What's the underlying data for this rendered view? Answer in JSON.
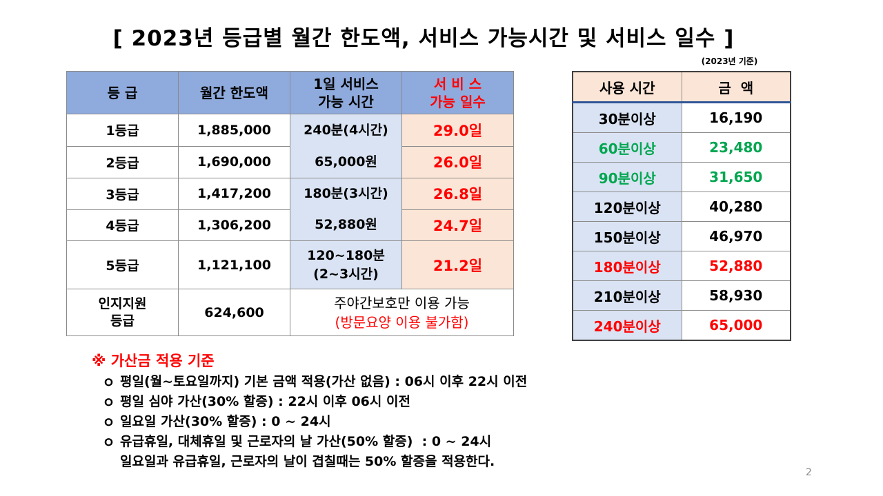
{
  "title": "[ 2023년 등급별 월간 한도액, 서비스 가능시간 및 서비스 일수 ]",
  "basis_note": "(2023년 기준)",
  "grade_table": {
    "headers": {
      "grade": "등 급",
      "limit": "월간 한도액",
      "daily_line1": "1일 서비스",
      "daily_line2": "가능 시간",
      "days_line1": "서 비 스",
      "days_line2": "가능 일수"
    },
    "rows": [
      {
        "grade": "1등급",
        "limit": "1,885,000",
        "days": "29.0일"
      },
      {
        "grade": "2등급",
        "limit": "1,690,000",
        "days": "26.0일"
      },
      {
        "grade": "3등급",
        "limit": "1,417,200",
        "days": "26.8일"
      },
      {
        "grade": "4등급",
        "limit": "1,306,200",
        "days": "24.7일"
      },
      {
        "grade": "5등급",
        "limit": "1,121,100",
        "days": "21.2일"
      }
    ],
    "service": {
      "g12_time": "240분(4시간)",
      "g12_amount": "65,000원",
      "g34_time": "180분(3시간)",
      "g34_amount": "52,880원",
      "g5_line1": "120~180분",
      "g5_line2": "(2~3시간)"
    },
    "cognitive": {
      "grade_line1": "인지지원",
      "grade_line2": "등급",
      "limit": "624,600",
      "note_line1": "주야간보호만 이용 가능",
      "note_line2": "(방문요양 이용 불가함)"
    }
  },
  "usage_table": {
    "headers": {
      "time": "사용 시간",
      "amount": "금  액"
    },
    "rows": [
      {
        "time": "30분이상",
        "amount": "16,190",
        "color": "#000000"
      },
      {
        "time": "60분이상",
        "amount": "23,480",
        "color": "#00a650"
      },
      {
        "time": "90분이상",
        "amount": "31,650",
        "color": "#00a650"
      },
      {
        "time": "120분이상",
        "amount": "40,280",
        "color": "#000000"
      },
      {
        "time": "150분이상",
        "amount": "46,970",
        "color": "#000000"
      },
      {
        "time": "180분이상",
        "amount": "52,880",
        "color": "#ff0000"
      },
      {
        "time": "210분이상",
        "amount": "58,930",
        "color": "#000000"
      },
      {
        "time": "240분이상",
        "amount": "65,000",
        "color": "#ff0000"
      }
    ]
  },
  "notes": {
    "title": "※ 가산금 적용 기준",
    "bullet": "ｏ",
    "items": [
      "평일(월~토요일까지) 기본 금액 적용(가산 없음) : 06시 이후 22시 이전",
      "평일 심야 가산(30% 할증) : 22시 이후 06시 이전",
      "일요일 가산(30% 할증) : 0 ~ 24시",
      "유급휴일, 대체휴일 및 근로자의 날 가산(50% 할증)  : 0 ~ 24시"
    ],
    "continuation": "일요일과 유급휴일, 근로자의 날이 겹칠때는 50% 할증을 적용한다."
  },
  "page_number": "2"
}
